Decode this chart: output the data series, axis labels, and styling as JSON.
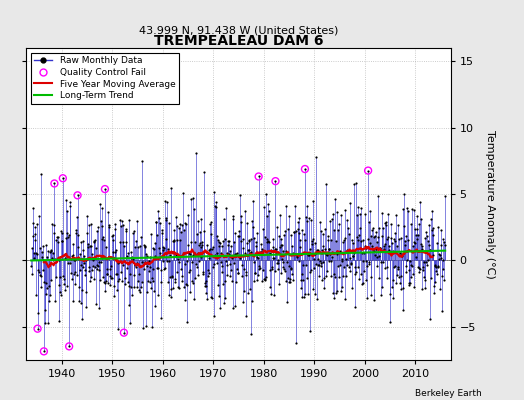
{
  "title": "TREMPEALEAU DAM 6",
  "subtitle": "43.999 N, 91.438 W (United States)",
  "ylabel": "Temperature Anomaly (°C)",
  "credit": "Berkeley Earth",
  "start_year": 1934,
  "end_year": 2016,
  "ylim": [
    -7.5,
    16
  ],
  "yticks": [
    -5,
    0,
    5,
    10,
    15
  ],
  "background_color": "#e8e8e8",
  "plot_background": "#ffffff",
  "line_color": "#3333cc",
  "ma_color": "#dd0000",
  "trend_color": "#00bb00",
  "qc_color": "#ff00ff",
  "seed": 12345,
  "noise_scale": 2.0,
  "n_qc": 12
}
